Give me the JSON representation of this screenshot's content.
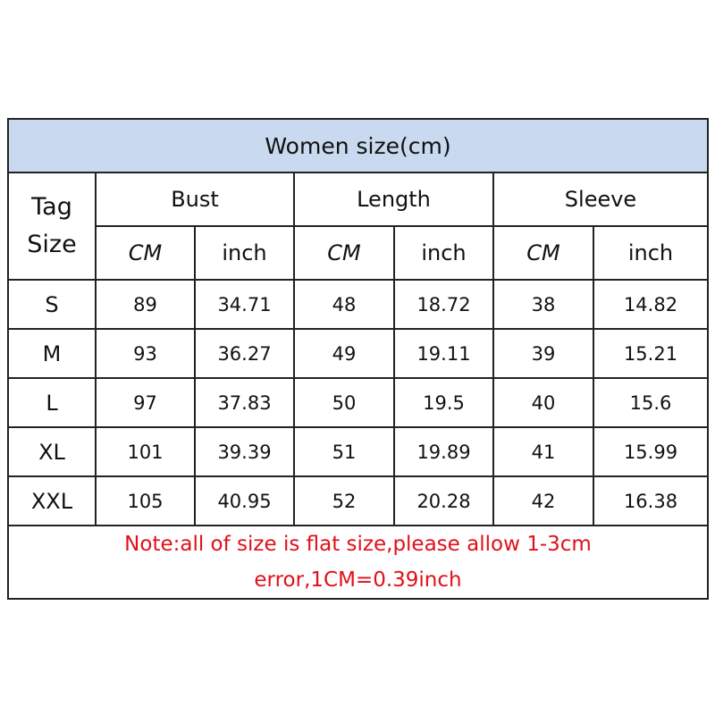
{
  "title": "Women size(cm)",
  "tag_header": {
    "line1": "Tag",
    "line2": "Size"
  },
  "groups": [
    "Bust",
    "Length",
    "Sleeve"
  ],
  "units": [
    "CM",
    "inch",
    "CM",
    "inch",
    "CM",
    "inch"
  ],
  "rows": [
    {
      "size": "S",
      "values": [
        "89",
        "34.71",
        "48",
        "18.72",
        "38",
        "14.82"
      ]
    },
    {
      "size": "M",
      "values": [
        "93",
        "36.27",
        "49",
        "19.11",
        "39",
        "15.21"
      ]
    },
    {
      "size": "L",
      "values": [
        "97",
        "37.83",
        "50",
        "19.5",
        "40",
        "15.6"
      ]
    },
    {
      "size": "XL",
      "values": [
        "101",
        "39.39",
        "51",
        "19.89",
        "41",
        "15.99"
      ]
    },
    {
      "size": "XXL",
      "values": [
        "105",
        "40.95",
        "52",
        "20.28",
        "42",
        "16.38"
      ]
    }
  ],
  "note": {
    "line1": "Note:all of size is flat size,please allow 1-3cm",
    "line2": "error,1CM=0.39inch"
  },
  "colors": {
    "header_bg": "#c9d9ef",
    "note_text": "#e0101a"
  }
}
